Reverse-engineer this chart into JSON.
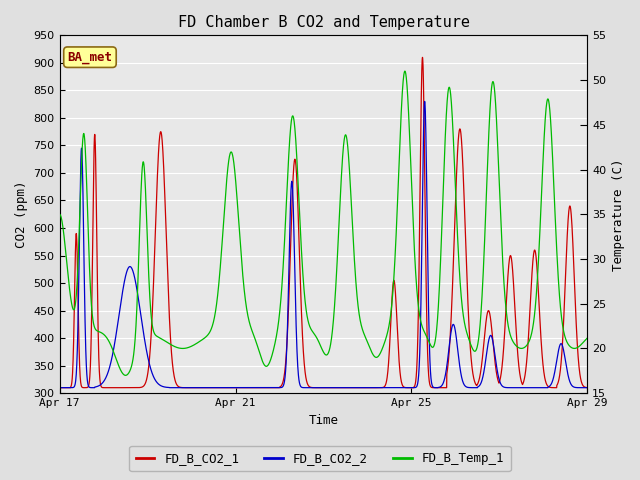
{
  "title": "FD Chamber B CO2 and Temperature",
  "ylabel_left": "CO2 (ppm)",
  "ylabel_right": "Temperature (C)",
  "xlabel": "Time",
  "ylim_left": [
    300,
    950
  ],
  "ylim_right": [
    15,
    55
  ],
  "yticks_left": [
    300,
    350,
    400,
    450,
    500,
    550,
    600,
    650,
    700,
    750,
    800,
    850,
    900,
    950
  ],
  "yticks_right": [
    15,
    20,
    25,
    30,
    35,
    40,
    45,
    50,
    55
  ],
  "xtick_labels": [
    "Apr 17",
    "Apr 21",
    "Apr 25",
    "Apr 29"
  ],
  "xtick_positions": [
    0,
    4,
    8,
    12
  ],
  "color_co2_1": "#cc0000",
  "color_co2_2": "#0000cc",
  "color_temp": "#00bb00",
  "legend_label_1": "FD_B_CO2_1",
  "legend_label_2": "FD_B_CO2_2",
  "legend_label_3": "FD_B_Temp_1",
  "watermark_text": "BA_met",
  "background_color": "#e0e0e0",
  "plot_bg_color": "#e8e8e8",
  "grid_color": "#ffffff",
  "title_fontsize": 11,
  "axis_fontsize": 9,
  "tick_fontsize": 8,
  "legend_fontsize": 9
}
